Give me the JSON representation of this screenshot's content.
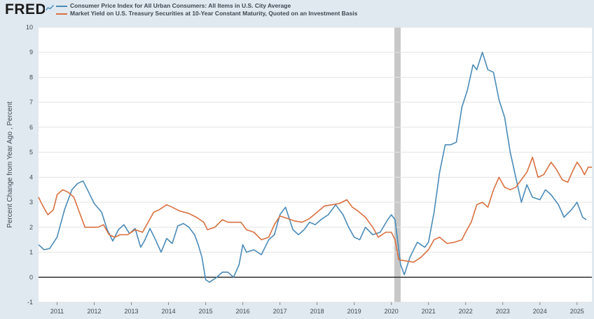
{
  "header": {
    "logo_text": "FRED",
    "logo_mark": "fred-trend-icon"
  },
  "colors": {
    "cpi": "#4a8bb8",
    "treasury": "#d9703f",
    "recession": "#c8c8c8",
    "zero_line": "#222222",
    "plot_bg": "#ffffff",
    "grid": "#e3e3e3"
  },
  "chart_data": {
    "type": "line",
    "title": "",
    "xlabel": "",
    "ylabel": "Percent Change from Year Ago , Percent",
    "ylim": [
      -1,
      10
    ],
    "xlim": [
      2010.5,
      2025.4
    ],
    "yticks": [
      "-1",
      "0",
      "1",
      "2",
      "3",
      "4",
      "5",
      "6",
      "7",
      "8",
      "9",
      "10"
    ],
    "xticks": [
      "2011",
      "2012",
      "2013",
      "2014",
      "2015",
      "2016",
      "2017",
      "2018",
      "2019",
      "2020",
      "2021",
      "2022",
      "2023",
      "2024",
      "2025"
    ],
    "grid": true,
    "legend_position": "top-left",
    "recession_shading": [
      [
        2020.08,
        2020.25
      ]
    ],
    "series": [
      {
        "name": "Consumer Price Index for All Urban Consumers: All Items in U.S. City Average",
        "color": "#4a8bb8",
        "points": [
          [
            2010.5,
            1.3
          ],
          [
            2010.65,
            1.1
          ],
          [
            2010.8,
            1.15
          ],
          [
            2011.0,
            1.6
          ],
          [
            2011.2,
            2.7
          ],
          [
            2011.4,
            3.5
          ],
          [
            2011.55,
            3.75
          ],
          [
            2011.7,
            3.85
          ],
          [
            2011.85,
            3.4
          ],
          [
            2012.0,
            2.95
          ],
          [
            2012.2,
            2.6
          ],
          [
            2012.35,
            1.9
          ],
          [
            2012.5,
            1.45
          ],
          [
            2012.65,
            1.9
          ],
          [
            2012.8,
            2.1
          ],
          [
            2012.95,
            1.75
          ],
          [
            2013.1,
            1.95
          ],
          [
            2013.25,
            1.2
          ],
          [
            2013.35,
            1.45
          ],
          [
            2013.5,
            1.95
          ],
          [
            2013.65,
            1.5
          ],
          [
            2013.8,
            1.0
          ],
          [
            2013.95,
            1.55
          ],
          [
            2014.1,
            1.35
          ],
          [
            2014.25,
            2.05
          ],
          [
            2014.4,
            2.15
          ],
          [
            2014.55,
            2.0
          ],
          [
            2014.7,
            1.7
          ],
          [
            2014.8,
            1.3
          ],
          [
            2014.9,
            0.8
          ],
          [
            2015.0,
            -0.1
          ],
          [
            2015.1,
            -0.2
          ],
          [
            2015.3,
            0.0
          ],
          [
            2015.45,
            0.2
          ],
          [
            2015.6,
            0.2
          ],
          [
            2015.75,
            0.0
          ],
          [
            2015.9,
            0.5
          ],
          [
            2016.0,
            1.3
          ],
          [
            2016.1,
            1.0
          ],
          [
            2016.3,
            1.1
          ],
          [
            2016.5,
            0.9
          ],
          [
            2016.7,
            1.5
          ],
          [
            2016.85,
            1.7
          ],
          [
            2017.0,
            2.5
          ],
          [
            2017.15,
            2.8
          ],
          [
            2017.35,
            1.9
          ],
          [
            2017.5,
            1.7
          ],
          [
            2017.65,
            1.9
          ],
          [
            2017.8,
            2.2
          ],
          [
            2017.95,
            2.1
          ],
          [
            2018.1,
            2.3
          ],
          [
            2018.3,
            2.5
          ],
          [
            2018.5,
            2.9
          ],
          [
            2018.7,
            2.5
          ],
          [
            2018.85,
            2.0
          ],
          [
            2019.0,
            1.6
          ],
          [
            2019.15,
            1.5
          ],
          [
            2019.3,
            2.0
          ],
          [
            2019.5,
            1.7
          ],
          [
            2019.7,
            1.8
          ],
          [
            2019.9,
            2.3
          ],
          [
            2020.0,
            2.5
          ],
          [
            2020.1,
            2.3
          ],
          [
            2020.25,
            0.5
          ],
          [
            2020.35,
            0.1
          ],
          [
            2020.5,
            0.8
          ],
          [
            2020.7,
            1.4
          ],
          [
            2020.9,
            1.2
          ],
          [
            2021.0,
            1.4
          ],
          [
            2021.15,
            2.6
          ],
          [
            2021.3,
            4.2
          ],
          [
            2021.45,
            5.3
          ],
          [
            2021.6,
            5.3
          ],
          [
            2021.75,
            5.4
          ],
          [
            2021.9,
            6.8
          ],
          [
            2022.05,
            7.5
          ],
          [
            2022.2,
            8.5
          ],
          [
            2022.3,
            8.3
          ],
          [
            2022.45,
            9.0
          ],
          [
            2022.6,
            8.3
          ],
          [
            2022.75,
            8.2
          ],
          [
            2022.9,
            7.1
          ],
          [
            2023.05,
            6.4
          ],
          [
            2023.2,
            5.0
          ],
          [
            2023.35,
            4.0
          ],
          [
            2023.5,
            3.0
          ],
          [
            2023.65,
            3.7
          ],
          [
            2023.8,
            3.2
          ],
          [
            2024.0,
            3.1
          ],
          [
            2024.15,
            3.5
          ],
          [
            2024.3,
            3.3
          ],
          [
            2024.5,
            2.9
          ],
          [
            2024.65,
            2.4
          ],
          [
            2024.85,
            2.7
          ],
          [
            2025.0,
            3.0
          ],
          [
            2025.15,
            2.4
          ],
          [
            2025.25,
            2.3
          ]
        ]
      },
      {
        "name": "Market Yield on U.S. Treasury Securities at 10-Year Constant Maturity, Quoted on an Investment Basis",
        "color": "#d9703f",
        "points": [
          [
            2010.5,
            3.2
          ],
          [
            2010.6,
            2.9
          ],
          [
            2010.75,
            2.5
          ],
          [
            2010.9,
            2.7
          ],
          [
            2011.0,
            3.3
          ],
          [
            2011.15,
            3.5
          ],
          [
            2011.3,
            3.4
          ],
          [
            2011.45,
            3.2
          ],
          [
            2011.6,
            2.6
          ],
          [
            2011.75,
            2.0
          ],
          [
            2011.9,
            2.0
          ],
          [
            2012.1,
            2.0
          ],
          [
            2012.25,
            2.1
          ],
          [
            2012.4,
            1.7
          ],
          [
            2012.55,
            1.6
          ],
          [
            2012.7,
            1.7
          ],
          [
            2012.9,
            1.7
          ],
          [
            2013.1,
            1.9
          ],
          [
            2013.3,
            1.8
          ],
          [
            2013.45,
            2.2
          ],
          [
            2013.6,
            2.6
          ],
          [
            2013.75,
            2.7
          ],
          [
            2013.95,
            2.9
          ],
          [
            2014.1,
            2.8
          ],
          [
            2014.3,
            2.65
          ],
          [
            2014.55,
            2.55
          ],
          [
            2014.75,
            2.4
          ],
          [
            2014.95,
            2.2
          ],
          [
            2015.05,
            1.9
          ],
          [
            2015.25,
            2.0
          ],
          [
            2015.45,
            2.3
          ],
          [
            2015.6,
            2.2
          ],
          [
            2015.8,
            2.2
          ],
          [
            2015.95,
            2.2
          ],
          [
            2016.1,
            1.9
          ],
          [
            2016.3,
            1.8
          ],
          [
            2016.5,
            1.5
          ],
          [
            2016.7,
            1.6
          ],
          [
            2016.85,
            2.1
          ],
          [
            2017.0,
            2.45
          ],
          [
            2017.2,
            2.35
          ],
          [
            2017.4,
            2.25
          ],
          [
            2017.6,
            2.2
          ],
          [
            2017.8,
            2.35
          ],
          [
            2018.0,
            2.6
          ],
          [
            2018.2,
            2.85
          ],
          [
            2018.4,
            2.9
          ],
          [
            2018.6,
            2.95
          ],
          [
            2018.8,
            3.1
          ],
          [
            2018.95,
            2.8
          ],
          [
            2019.1,
            2.65
          ],
          [
            2019.3,
            2.4
          ],
          [
            2019.5,
            2.0
          ],
          [
            2019.65,
            1.6
          ],
          [
            2019.85,
            1.8
          ],
          [
            2020.0,
            1.8
          ],
          [
            2020.1,
            1.5
          ],
          [
            2020.2,
            0.7
          ],
          [
            2020.4,
            0.65
          ],
          [
            2020.6,
            0.6
          ],
          [
            2020.8,
            0.8
          ],
          [
            2021.0,
            1.1
          ],
          [
            2021.15,
            1.5
          ],
          [
            2021.3,
            1.6
          ],
          [
            2021.5,
            1.35
          ],
          [
            2021.7,
            1.4
          ],
          [
            2021.9,
            1.5
          ],
          [
            2022.0,
            1.8
          ],
          [
            2022.15,
            2.2
          ],
          [
            2022.3,
            2.9
          ],
          [
            2022.45,
            3.0
          ],
          [
            2022.6,
            2.8
          ],
          [
            2022.75,
            3.5
          ],
          [
            2022.9,
            4.0
          ],
          [
            2023.05,
            3.6
          ],
          [
            2023.2,
            3.5
          ],
          [
            2023.35,
            3.6
          ],
          [
            2023.5,
            3.9
          ],
          [
            2023.65,
            4.2
          ],
          [
            2023.8,
            4.8
          ],
          [
            2023.95,
            4.0
          ],
          [
            2024.1,
            4.1
          ],
          [
            2024.3,
            4.6
          ],
          [
            2024.45,
            4.3
          ],
          [
            2024.6,
            3.9
          ],
          [
            2024.75,
            3.8
          ],
          [
            2024.9,
            4.3
          ],
          [
            2025.0,
            4.6
          ],
          [
            2025.1,
            4.4
          ],
          [
            2025.2,
            4.1
          ],
          [
            2025.3,
            4.4
          ],
          [
            2025.4,
            4.4
          ]
        ]
      }
    ]
  }
}
